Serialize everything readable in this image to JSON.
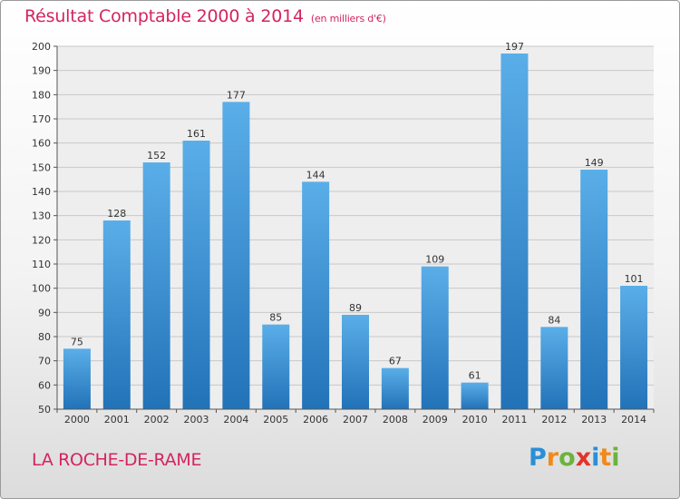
{
  "title": "Résultat Comptable 2000 à 2014",
  "unit_note": "(en milliers d'€)",
  "commune": "LA ROCHE-DE-RAME",
  "logo": {
    "text": "Proxiti",
    "letters": [
      {
        "char": "P",
        "color": "#2a8fd6"
      },
      {
        "char": "r",
        "color": "#f08a1c"
      },
      {
        "char": "o",
        "color": "#6cb33e"
      },
      {
        "char": "x",
        "color": "#e2332b"
      },
      {
        "char": "i",
        "color": "#2a8fd6"
      },
      {
        "char": "t",
        "color": "#f08a1c"
      },
      {
        "char": "i",
        "color": "#6cb33e"
      }
    ]
  },
  "colors": {
    "accent": "#d4245f",
    "bar_top": "#5aaee8",
    "bar_bottom": "#2272b8",
    "grid": "#c8c8c8",
    "plot_bg": "#eeeeee"
  },
  "chart_data": {
    "type": "bar",
    "title": "Résultat Comptable 2000 à 2014",
    "subtitle": "(en milliers d'€)",
    "xlabel": "",
    "ylabel": "",
    "categories": [
      "2000",
      "2001",
      "2002",
      "2003",
      "2004",
      "2005",
      "2006",
      "2007",
      "2008",
      "2009",
      "2010",
      "2011",
      "2012",
      "2013",
      "2014"
    ],
    "values": [
      75,
      128,
      152,
      161,
      177,
      85,
      144,
      89,
      67,
      109,
      61,
      197,
      84,
      149,
      101
    ],
    "ylim": [
      50,
      200
    ],
    "ytick_step": 10,
    "grid": true,
    "legend": "none"
  }
}
